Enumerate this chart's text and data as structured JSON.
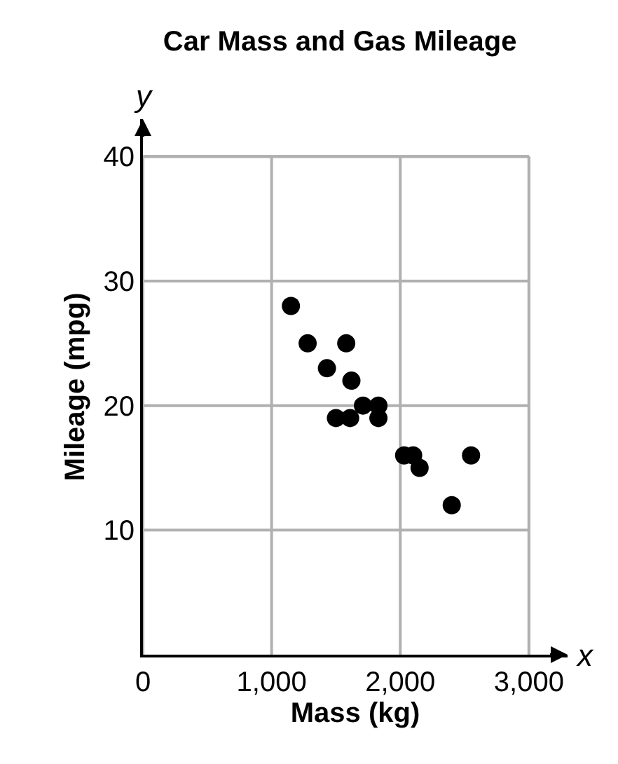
{
  "chart_data": {
    "type": "scatter",
    "title": "Car Mass and Gas Mileage",
    "xlabel": "Mass (kg)",
    "ylabel": "Mileage (mpg)",
    "annotations": [
      "x",
      "y"
    ],
    "x": [
      1150,
      1280,
      1580,
      1430,
      1620,
      1500,
      1610,
      1710,
      1830,
      1830,
      2030,
      2100,
      2150,
      2400,
      2550
    ],
    "values": [
      28,
      25,
      25,
      23,
      22,
      19,
      19,
      20,
      20,
      19,
      16,
      16,
      15,
      12,
      16
    ],
    "color": "#000000",
    "marker": "circle",
    "xlim": [
      0,
      3300
    ],
    "ylim": [
      0,
      43
    ],
    "xticks": [
      {
        "value": 0,
        "label": "0"
      },
      {
        "value": 1000,
        "label": "1,000"
      },
      {
        "value": 2000,
        "label": "2,000"
      },
      {
        "value": 3000,
        "label": "3,000"
      }
    ],
    "yticks": [
      10,
      20,
      30,
      40
    ],
    "grid": true
  }
}
